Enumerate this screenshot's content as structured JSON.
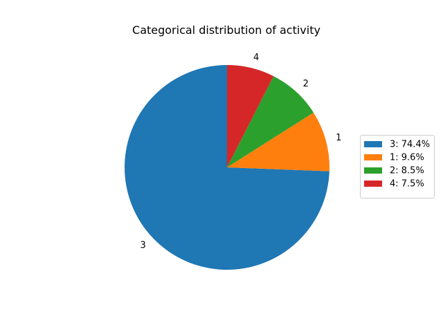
{
  "chart_data": {
    "type": "pie",
    "title": "Categorical distribution of activity",
    "slices": [
      {
        "label": "3",
        "value": 74.4,
        "legend": "3: 74.4%",
        "color": "#1f77b4"
      },
      {
        "label": "1",
        "value": 9.6,
        "legend": "1: 9.6%",
        "color": "#ff7f0e"
      },
      {
        "label": "2",
        "value": 8.5,
        "legend": "2: 8.5%",
        "color": "#2ca02c"
      },
      {
        "label": "4",
        "value": 7.5,
        "legend": "4: 7.5%",
        "color": "#d62728"
      }
    ],
    "start_angle_deg": 90,
    "direction": "counterclockwise",
    "legend_position": "right"
  }
}
